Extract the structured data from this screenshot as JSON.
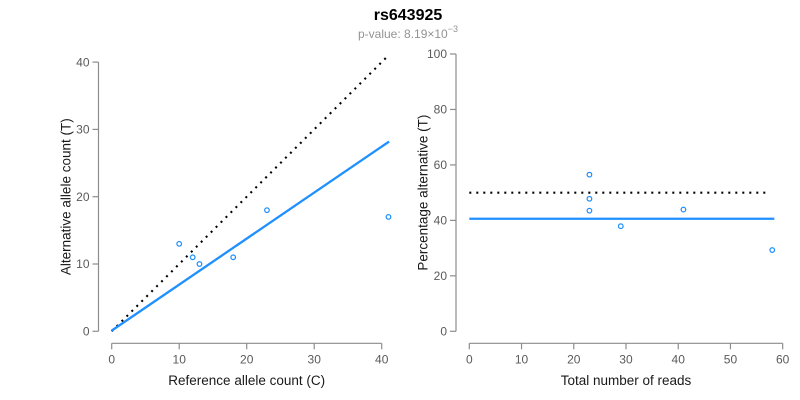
{
  "header": {
    "title": "rs643925",
    "subtitle_prefix": "p-value: ",
    "subtitle_base": "8.19×10",
    "subtitle_exponent": "−3"
  },
  "colors": {
    "accent_blue": "#1E90FF",
    "dotted_black": "#000000",
    "axis_line": "#8c8c8c",
    "tick_label": "#5a5a5a",
    "axis_title": "#1a1a1a",
    "title": "#000000",
    "subtitle": "#939393",
    "background": "#ffffff"
  },
  "chart_data": [
    {
      "name": "allele-counts",
      "type": "scatter",
      "title": "rs643925",
      "subtitle": "p-value: 8.19×10−3",
      "xlabel": "Reference allele count (C)",
      "ylabel": "Alternative allele count (T)",
      "xlim": [
        0,
        41
      ],
      "ylim": [
        0,
        41
      ],
      "xticks": [
        0,
        10,
        20,
        30,
        40
      ],
      "yticks": [
        0,
        10,
        20,
        30,
        40
      ],
      "grid": false,
      "legend": null,
      "points": [
        [
          10,
          13
        ],
        [
          12,
          11
        ],
        [
          13,
          10
        ],
        [
          18,
          11
        ],
        [
          23,
          18
        ],
        [
          41,
          17
        ]
      ],
      "lines": [
        {
          "name": "identity-line",
          "style": "dotted",
          "color_key": "dotted_black",
          "from": [
            0,
            0
          ],
          "to": [
            40.8,
            40.8
          ]
        },
        {
          "name": "fit-line",
          "style": "solid",
          "color_key": "accent_blue",
          "from": [
            0,
            0.1
          ],
          "to": [
            41.1,
            28.2
          ]
        }
      ]
    },
    {
      "name": "percentage-vs-reads",
      "type": "scatter",
      "title": "rs643925",
      "subtitle": "p-value: 8.19×10−3",
      "xlabel": "Total number of reads",
      "ylabel": "Percentage alternative (T)",
      "xlim": [
        0,
        60
      ],
      "ylim": [
        0,
        100
      ],
      "xticks": [
        0,
        10,
        20,
        30,
        40,
        50,
        60
      ],
      "yticks": [
        0,
        20,
        40,
        60,
        80,
        100
      ],
      "grid": false,
      "legend": null,
      "points": [
        [
          23,
          56.5
        ],
        [
          23,
          47.8
        ],
        [
          23,
          43.5
        ],
        [
          29,
          37.9
        ],
        [
          41,
          43.9
        ],
        [
          58,
          29.3
        ]
      ],
      "lines": [
        {
          "name": "null-50-line",
          "style": "dotted",
          "color_key": "dotted_black",
          "from": [
            0,
            50
          ],
          "to": [
            57.3,
            50
          ]
        },
        {
          "name": "mean-percentage-line",
          "style": "solid",
          "color_key": "accent_blue",
          "from": [
            0,
            40.6
          ],
          "to": [
            58.4,
            40.6
          ]
        }
      ]
    }
  ]
}
